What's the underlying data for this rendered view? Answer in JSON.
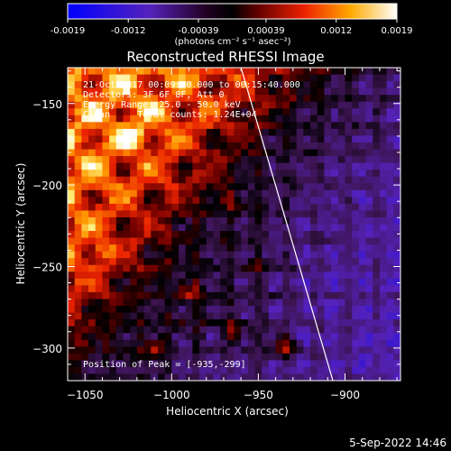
{
  "title": "Reconstructed RHESSI Image",
  "colorbar": {
    "ticks": [
      "-0.0019",
      "-0.0012",
      "-0.00039",
      "0.00039",
      "0.0012",
      "0.0019"
    ],
    "tick_values": [
      -0.0019,
      -0.0012,
      -0.00039,
      0.00039,
      0.0012,
      0.0019
    ],
    "range": [
      -0.0019,
      0.0019
    ],
    "unit_label": "(photons cm⁻² s⁻¹ asec⁻²)"
  },
  "annotations": {
    "time": "21-Oct-2017 00:09:40.000 to 00:15:40.000",
    "detectors": "Detectors: 3F 6F 8F, Att 0",
    "energy": "Energy Range: 25.0 - 50.0 keV",
    "clean": "Clean     Total counts: 1.24E+04",
    "peak": "Position of Peak = [-935,-299]"
  },
  "footer": {
    "date": "5-Sep-2022 14:46"
  },
  "chart_data": {
    "type": "heatmap",
    "title": "Reconstructed RHESSI Image",
    "xlabel": "Heliocentric X (arcsec)",
    "ylabel": "Heliocentric Y (arcsec)",
    "xlim": [
      -1060,
      -868
    ],
    "ylim": [
      -320,
      -128
    ],
    "xticks": [
      -1050,
      -1000,
      -950,
      -900
    ],
    "yticks": [
      -150,
      -200,
      -250,
      -300
    ],
    "peak_position": [
      -935,
      -299
    ],
    "limb_line": [
      [
        -960,
        -128
      ],
      [
        -907,
        -320
      ]
    ],
    "color_scale": [
      "#0000ff",
      "#6633aa",
      "#000000",
      "#cc0000",
      "#ff7700",
      "#ffff88",
      "#ffffff"
    ]
  },
  "colors": {
    "axes": "#ffffff",
    "background": "#000000"
  }
}
